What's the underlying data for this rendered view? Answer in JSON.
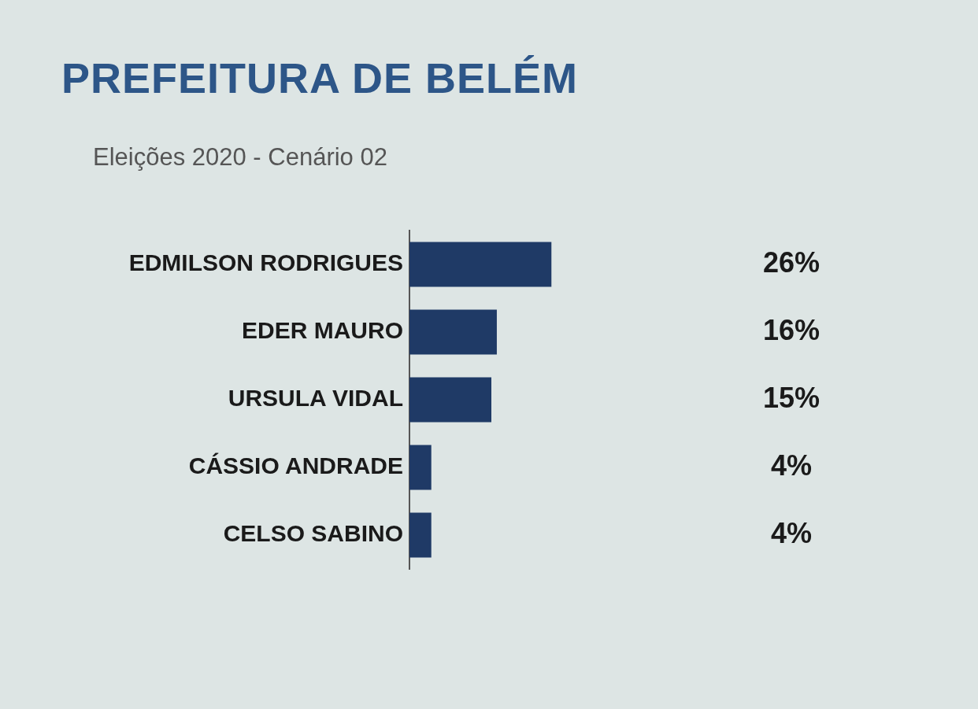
{
  "chart_data": {
    "type": "bar",
    "orientation": "horizontal",
    "title": "PREFEITURA DE BELÉM",
    "subtitle": "Eleições 2020 - Cenário 02",
    "categories": [
      "EDMILSON RODRIGUES",
      "EDER MAURO",
      "URSULA VIDAL",
      "CÁSSIO ANDRADE",
      "CELSO SABINO"
    ],
    "values": [
      26,
      16,
      15,
      4,
      4
    ],
    "value_labels": [
      "26%",
      "16%",
      "15%",
      "4%",
      "4%"
    ],
    "color": "#1f3a66"
  }
}
